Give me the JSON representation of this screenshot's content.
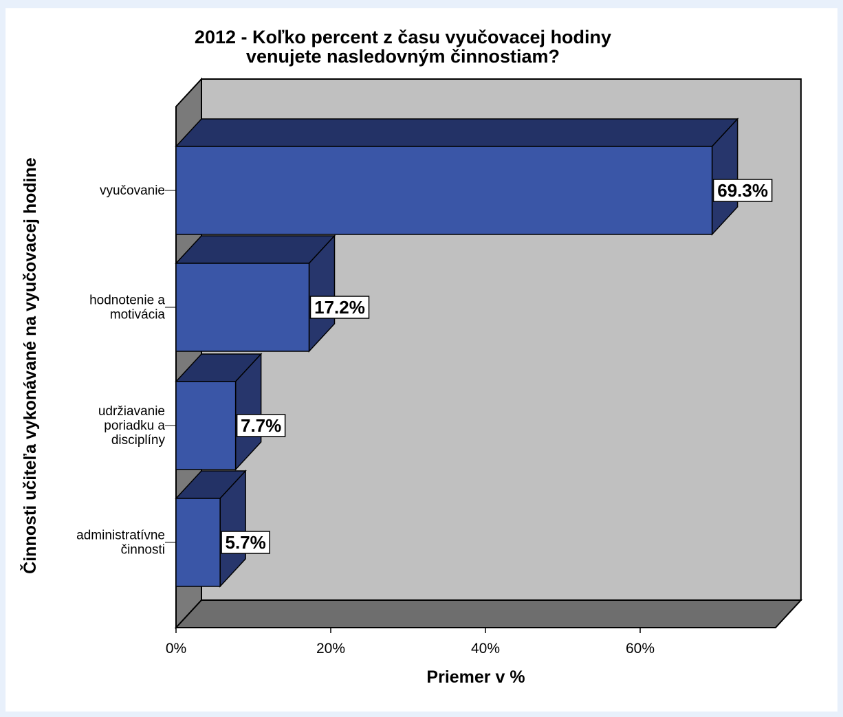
{
  "chart_data": {
    "type": "bar",
    "orientation": "horizontal",
    "style": "3d",
    "title": "2012 - Koľko percent z času vyučovacej hodiny venujete nasledovným činnostiam?",
    "title_lines": [
      "2012 - Koľko percent z času vyučovacej hodiny",
      "venujete nasledovným činnostiam?"
    ],
    "categories": [
      "vyučovanie",
      "hodnotenie a motivácia",
      "udržiavanie poriadku a disciplíny",
      "administratívne činnosti"
    ],
    "category_lines": [
      [
        "vyučovanie"
      ],
      [
        "hodnotenie a",
        "motivácia"
      ],
      [
        "udržiavanie",
        "poriadku a",
        "disciplíny"
      ],
      [
        "administratívne",
        "činnosti"
      ]
    ],
    "values": [
      69.3,
      17.2,
      7.7,
      5.7
    ],
    "data_labels": [
      "69.3%",
      "17.2%",
      "7.7%",
      "5.7%"
    ],
    "xlabel": "Priemer v %",
    "ylabel": "Činnosti učiteľa vykonávané na vyučovacej hodine",
    "xlim": [
      0,
      77.5
    ],
    "xticks": [
      0,
      20,
      40,
      60
    ],
    "xtick_labels": [
      "0%",
      "20%",
      "40%",
      "60%"
    ],
    "grid": false,
    "legend": "none",
    "colors": {
      "bar_front": "#3a56a7",
      "bar_top": "#233266",
      "bar_side": "#27366c",
      "wall_back": "#c0c0c0",
      "wall_left": "#7a7a7a",
      "floor": "#6e6e6e",
      "page_background": "#e8f0fb",
      "frame_background": "#ffffff"
    }
  }
}
